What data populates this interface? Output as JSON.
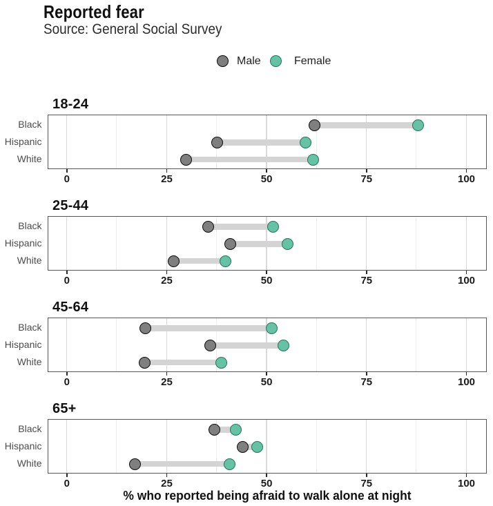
{
  "title": "Reported fear",
  "subtitle": "Source: General Social Survey",
  "legend": {
    "items": [
      {
        "label": "Male",
        "fill": "#7f7f7f",
        "ring": "#0a0a0a"
      },
      {
        "label": "Female",
        "fill": "#66c2a5",
        "ring": "#27735a"
      }
    ]
  },
  "chart_data": {
    "type": "dumbbell",
    "title": "Reported fear",
    "subtitle": "Source: General Social Survey",
    "xlabel": "% who reported being afraid to walk alone at night",
    "ylabel": "",
    "facet_variable": "age group",
    "categories": [
      "Black",
      "Hispanic",
      "White"
    ],
    "series_names": [
      "Male",
      "Female"
    ],
    "x_ticks": [
      0,
      25,
      50,
      75,
      100
    ],
    "xlim": [
      -4.8,
      105.1
    ],
    "grid": "vertical major and minor",
    "legend_position": "top center",
    "facets": [
      {
        "label": "18-24",
        "rows": [
          {
            "category": "Black",
            "male": 62.0,
            "female": 87.9
          },
          {
            "category": "Hispanic",
            "male": 37.6,
            "female": 59.8
          },
          {
            "category": "White",
            "male": 29.9,
            "female": 61.6
          }
        ]
      },
      {
        "label": "25-44",
        "rows": [
          {
            "category": "Black",
            "male": 35.4,
            "female": 51.7
          },
          {
            "category": "Hispanic",
            "male": 40.9,
            "female": 55.3
          },
          {
            "category": "White",
            "male": 26.8,
            "female": 39.8
          }
        ]
      },
      {
        "label": "45-64",
        "rows": [
          {
            "category": "Black",
            "male": 19.6,
            "female": 51.3
          },
          {
            "category": "Hispanic",
            "male": 36.0,
            "female": 54.3
          },
          {
            "category": "White",
            "male": 19.5,
            "female": 38.7
          }
        ]
      },
      {
        "label": "65+",
        "rows": [
          {
            "category": "Black",
            "male": 36.9,
            "female": 42.3
          },
          {
            "category": "Hispanic",
            "male": 44.0,
            "female": 47.7
          },
          {
            "category": "White",
            "male": 17.1,
            "female": 40.8
          }
        ]
      }
    ]
  },
  "colors": {
    "male_fill": "#7f7f7f",
    "male_ring": "#0a0a0a",
    "female_fill": "#66c2a5",
    "female_ring": "#27735a",
    "segment": "#d4d4d4",
    "panel_border": "#565656",
    "grid_major": "#d9d9d9",
    "grid_minor": "#ededed",
    "background": "#ffffff"
  }
}
